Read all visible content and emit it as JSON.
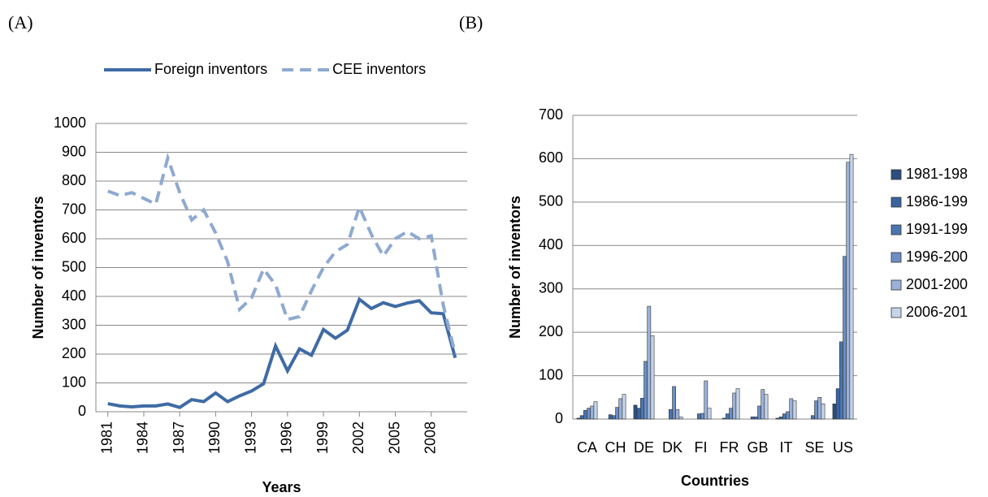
{
  "chart_data": [
    {
      "type": "line",
      "label": "(A)",
      "ylabel": "Number of inventors",
      "xlabel": "Years",
      "x": [
        1981,
        1982,
        1983,
        1984,
        1985,
        1986,
        1987,
        1988,
        1989,
        1990,
        1991,
        1992,
        1993,
        1994,
        1995,
        1996,
        1997,
        1998,
        1999,
        2000,
        2001,
        2002,
        2003,
        2004,
        2005,
        2006,
        2007,
        2008,
        2009,
        2010
      ],
      "series": [
        {
          "name": "Foreign inventors",
          "color": "#3f6ba5",
          "dashed": false,
          "values": [
            28,
            20,
            17,
            20,
            20,
            27,
            15,
            42,
            35,
            65,
            35,
            55,
            72,
            97,
            228,
            142,
            218,
            196,
            285,
            255,
            283,
            390,
            358,
            378,
            365,
            377,
            385,
            343,
            340,
            187
          ]
        },
        {
          "name": "CEE inventors",
          "color": "#8fa9d1",
          "dashed": true,
          "values": [
            765,
            750,
            760,
            740,
            720,
            880,
            760,
            665,
            700,
            620,
            520,
            355,
            395,
            495,
            440,
            320,
            330,
            420,
            500,
            555,
            580,
            710,
            615,
            540,
            600,
            625,
            600,
            610,
            370,
            200
          ]
        }
      ],
      "xlim": [
        1980,
        2011
      ],
      "xticks": [
        1981,
        1984,
        1987,
        1990,
        1993,
        1996,
        1999,
        2002,
        2005,
        2008
      ],
      "ylim": [
        0,
        1000
      ],
      "yticks": [
        0,
        100,
        200,
        300,
        400,
        500,
        600,
        700,
        800,
        900,
        1000
      ],
      "grid": true
    },
    {
      "type": "bar",
      "label": "(B)",
      "ylabel": "Number of inventors",
      "xlabel": "Countries",
      "categories": [
        "CA",
        "CH",
        "DE",
        "DK",
        "FI",
        "FR",
        "GB",
        "IT",
        "SE",
        "US"
      ],
      "series": [
        {
          "name": "1981-198",
          "color": "#2b4f7e",
          "values": [
            2,
            0,
            32,
            0,
            0,
            0,
            0,
            2,
            0,
            35
          ]
        },
        {
          "name": "1986-199",
          "color": "#3a63a0",
          "values": [
            8,
            10,
            25,
            0,
            0,
            2,
            5,
            5,
            0,
            70
          ]
        },
        {
          "name": "1991-199",
          "color": "#4a75b0",
          "values": [
            20,
            8,
            48,
            22,
            12,
            12,
            5,
            12,
            8,
            178
          ]
        },
        {
          "name": "1996-200",
          "color": "#6b8fc4",
          "values": [
            25,
            27,
            133,
            75,
            13,
            25,
            30,
            17,
            42,
            375
          ]
        },
        {
          "name": "2001-200",
          "color": "#9ab1d8",
          "values": [
            30,
            47,
            260,
            22,
            88,
            60,
            68,
            47,
            50,
            592
          ]
        },
        {
          "name": "2006-201",
          "color": "#c6d4ea",
          "values": [
            40,
            57,
            192,
            5,
            25,
            70,
            57,
            42,
            35,
            610
          ]
        }
      ],
      "ylim": [
        0,
        700
      ],
      "yticks": [
        0,
        100,
        200,
        300,
        400,
        500,
        600,
        700
      ],
      "grid": true
    }
  ]
}
